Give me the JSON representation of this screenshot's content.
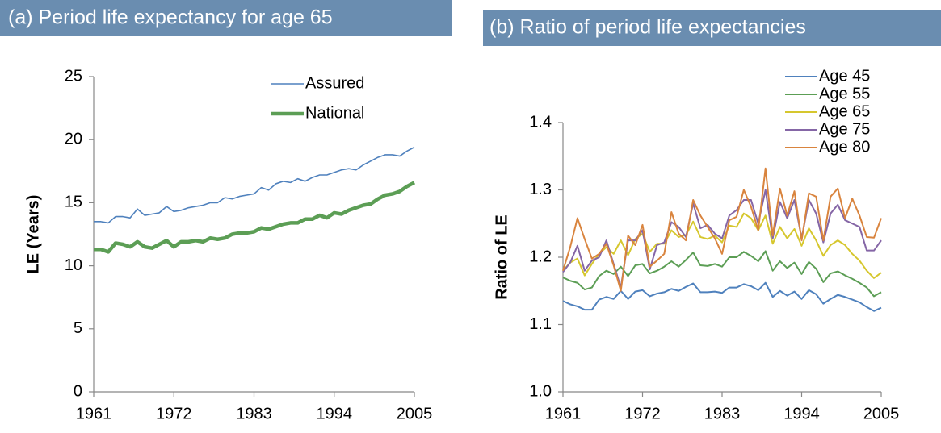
{
  "chart_data": [
    {
      "type": "line",
      "title": "(a) Period life expectancy for age 65",
      "y_label": "LE (Years)",
      "x": [
        1961,
        1962,
        1963,
        1964,
        1965,
        1966,
        1967,
        1968,
        1969,
        1970,
        1971,
        1972,
        1973,
        1974,
        1975,
        1976,
        1977,
        1978,
        1979,
        1980,
        1981,
        1982,
        1983,
        1984,
        1985,
        1986,
        1987,
        1988,
        1989,
        1990,
        1991,
        1992,
        1993,
        1994,
        1995,
        1996,
        1997,
        1998,
        1999,
        2000,
        2001,
        2002,
        2003,
        2004,
        2005
      ],
      "xlim": [
        1961,
        2005
      ],
      "xticks": [
        1961,
        1972,
        1983,
        1994,
        2005
      ],
      "ylim": [
        0,
        25
      ],
      "yticks": [
        0,
        5,
        10,
        15,
        20,
        25
      ],
      "legend": "upper right",
      "series": [
        {
          "name": "Assured",
          "color": "#4f81bd",
          "values": [
            13.5,
            13.5,
            13.4,
            13.9,
            13.9,
            13.8,
            14.5,
            14.0,
            14.1,
            14.2,
            14.7,
            14.3,
            14.4,
            14.6,
            14.7,
            14.8,
            15.0,
            15.0,
            15.4,
            15.3,
            15.5,
            15.6,
            15.7,
            16.2,
            16.0,
            16.5,
            16.7,
            16.6,
            16.9,
            16.7,
            17.0,
            17.2,
            17.2,
            17.4,
            17.6,
            17.7,
            17.6,
            18.0,
            18.3,
            18.6,
            18.8,
            18.8,
            18.7,
            19.1,
            19.4
          ]
        },
        {
          "name": "National",
          "color": "#5c9e55",
          "values": [
            11.3,
            11.3,
            11.1,
            11.8,
            11.7,
            11.5,
            11.9,
            11.5,
            11.4,
            11.7,
            12.0,
            11.5,
            11.9,
            11.9,
            12.0,
            11.9,
            12.2,
            12.1,
            12.2,
            12.5,
            12.6,
            12.6,
            12.7,
            13.0,
            12.9,
            13.1,
            13.3,
            13.4,
            13.4,
            13.7,
            13.7,
            14.0,
            13.8,
            14.2,
            14.1,
            14.4,
            14.6,
            14.8,
            14.9,
            15.3,
            15.6,
            15.7,
            15.9,
            16.3,
            16.6
          ]
        }
      ]
    },
    {
      "type": "line",
      "title": "(b) Ratio of period life expectancies",
      "y_label": "Ratio of LE",
      "x": [
        1961,
        1962,
        1963,
        1964,
        1965,
        1966,
        1967,
        1968,
        1969,
        1970,
        1971,
        1972,
        1973,
        1974,
        1975,
        1976,
        1977,
        1978,
        1979,
        1980,
        1981,
        1982,
        1983,
        1984,
        1985,
        1986,
        1987,
        1988,
        1989,
        1990,
        1991,
        1992,
        1993,
        1994,
        1995,
        1996,
        1997,
        1998,
        1999,
        2000,
        2001,
        2002,
        2003,
        2004,
        2005
      ],
      "xlim": [
        1961,
        2005
      ],
      "xticks": [
        1961,
        1972,
        1983,
        1994,
        2005
      ],
      "ylim": [
        1.0,
        1.4
      ],
      "yticks": [
        {
          "value": 1.0,
          "label": "1.0"
        },
        1.1,
        1.2,
        1.3,
        1.4
      ],
      "legend": "upper right",
      "series": [
        {
          "name": "Age 45",
          "color": "#4f81bd",
          "values": [
            1.135,
            1.13,
            1.127,
            1.122,
            1.122,
            1.137,
            1.141,
            1.138,
            1.15,
            1.138,
            1.149,
            1.151,
            1.142,
            1.146,
            1.148,
            1.153,
            1.15,
            1.156,
            1.161,
            1.148,
            1.148,
            1.149,
            1.147,
            1.155,
            1.155,
            1.16,
            1.157,
            1.151,
            1.162,
            1.141,
            1.15,
            1.143,
            1.149,
            1.138,
            1.151,
            1.145,
            1.131,
            1.138,
            1.144,
            1.141,
            1.137,
            1.133,
            1.126,
            1.12,
            1.125
          ]
        },
        {
          "name": "Age 55",
          "color": "#5c9e55",
          "values": [
            1.17,
            1.165,
            1.162,
            1.152,
            1.155,
            1.172,
            1.18,
            1.175,
            1.186,
            1.172,
            1.188,
            1.19,
            1.176,
            1.18,
            1.186,
            1.194,
            1.186,
            1.196,
            1.207,
            1.188,
            1.187,
            1.19,
            1.186,
            1.2,
            1.2,
            1.208,
            1.202,
            1.194,
            1.209,
            1.18,
            1.194,
            1.184,
            1.192,
            1.175,
            1.193,
            1.183,
            1.163,
            1.176,
            1.179,
            1.173,
            1.168,
            1.162,
            1.155,
            1.142,
            1.148
          ]
        },
        {
          "name": "Age 65",
          "color": "#d6c72e",
          "values": [
            1.18,
            1.192,
            1.198,
            1.173,
            1.19,
            1.205,
            1.215,
            1.205,
            1.225,
            1.203,
            1.227,
            1.235,
            1.208,
            1.22,
            1.22,
            1.24,
            1.23,
            1.233,
            1.253,
            1.23,
            1.227,
            1.232,
            1.222,
            1.247,
            1.245,
            1.265,
            1.258,
            1.24,
            1.262,
            1.22,
            1.245,
            1.228,
            1.242,
            1.217,
            1.243,
            1.225,
            1.202,
            1.218,
            1.225,
            1.218,
            1.205,
            1.195,
            1.18,
            1.169,
            1.177
          ]
        },
        {
          "name": "Age 75",
          "color": "#8566a6",
          "values": [
            1.178,
            1.192,
            1.217,
            1.18,
            1.195,
            1.2,
            1.225,
            1.19,
            1.155,
            1.225,
            1.225,
            1.24,
            1.182,
            1.218,
            1.222,
            1.252,
            1.245,
            1.23,
            1.28,
            1.243,
            1.248,
            1.235,
            1.228,
            1.262,
            1.27,
            1.285,
            1.285,
            1.25,
            1.3,
            1.228,
            1.282,
            1.258,
            1.285,
            1.228,
            1.285,
            1.265,
            1.222,
            1.265,
            1.278,
            1.255,
            1.25,
            1.245,
            1.21,
            1.21,
            1.225
          ]
        },
        {
          "name": "Age 80",
          "color": "#d9843e",
          "values": [
            1.18,
            1.215,
            1.258,
            1.227,
            1.198,
            1.205,
            1.22,
            1.188,
            1.15,
            1.232,
            1.218,
            1.248,
            1.186,
            1.195,
            1.205,
            1.267,
            1.235,
            1.225,
            1.285,
            1.262,
            1.245,
            1.228,
            1.205,
            1.255,
            1.26,
            1.3,
            1.275,
            1.24,
            1.332,
            1.232,
            1.302,
            1.262,
            1.298,
            1.225,
            1.295,
            1.29,
            1.225,
            1.29,
            1.302,
            1.258,
            1.287,
            1.262,
            1.23,
            1.229,
            1.258
          ]
        }
      ]
    }
  ]
}
